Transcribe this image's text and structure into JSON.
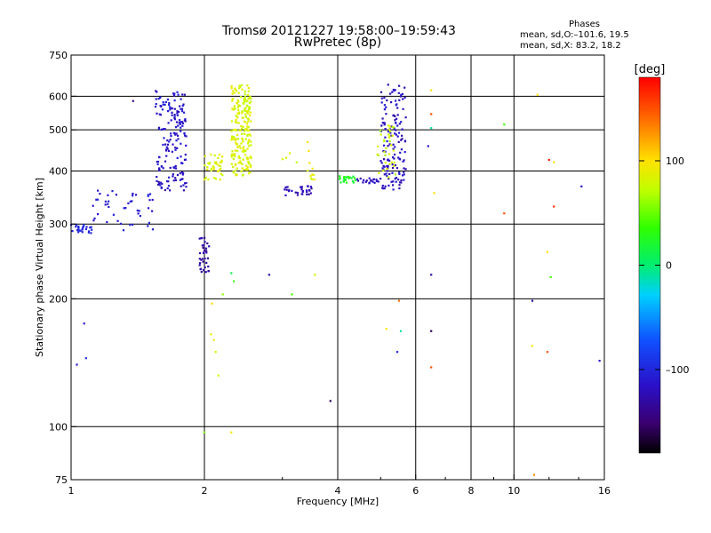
{
  "header": {
    "title_line1": "Tromsø 20121227 19:58:00–19:59:43",
    "title_line2": "RwPretec (8p)",
    "phases_title": "Phases",
    "phases_o": "mean, sd,O:–101.6, 19.5",
    "phases_x": "mean, sd,X:  83.2, 18.2"
  },
  "colorbar": {
    "unit_label": "[deg]",
    "tick_labels": [
      "100",
      "0",
      "–100"
    ],
    "tick_values": [
      100,
      0,
      -100
    ],
    "range": [
      -180,
      180
    ]
  },
  "chart_data": {
    "type": "scatter",
    "title": "Tromsø 20121227 19:58:00–19:59:43",
    "subtitle": "RwPretec (8p)",
    "xlabel": "Frequency [MHz]",
    "ylabel": "Stationary phase Virtual Height [km]",
    "xscale": "log",
    "yscale": "log",
    "xlim": [
      1,
      16
    ],
    "ylim": [
      75,
      750
    ],
    "grid": true,
    "x_ticks": [
      1,
      2,
      4,
      6,
      8,
      10,
      16
    ],
    "x_tick_labels": [
      "1",
      "2",
      "4",
      "6",
      "8",
      "10",
      "16"
    ],
    "y_ticks": [
      75,
      100,
      200,
      300,
      400,
      500,
      600,
      750
    ],
    "y_tick_labels": [
      "75",
      "100",
      "200",
      "300",
      "400",
      "500",
      "600",
      "750"
    ],
    "x_gridlines": [
      2,
      4,
      6,
      8,
      10
    ],
    "y_gridlines": [
      100,
      200,
      300,
      400,
      500,
      600
    ],
    "color_by": "phase_deg",
    "clusters": [
      {
        "name": "low O-trace",
        "f": [
          1.0,
          1.12
        ],
        "h": [
          285,
          300
        ],
        "phase": [
          -110,
          -95
        ],
        "n": 25
      },
      {
        "name": "rising O-trace",
        "f": [
          1.12,
          1.55
        ],
        "h": [
          290,
          360
        ],
        "phase": [
          -115,
          -100
        ],
        "n": 45
      },
      {
        "name": "F-layer O cusp",
        "f": [
          1.55,
          1.82
        ],
        "h": [
          360,
          620
        ],
        "phase": [
          -125,
          -100
        ],
        "n": 170
      },
      {
        "name": "spread near 2 MHz",
        "f": [
          1.95,
          2.05
        ],
        "h": [
          230,
          280
        ],
        "phase": [
          -140,
          -120
        ],
        "n": 35
      },
      {
        "name": "X-trace cluster low",
        "f": [
          2.0,
          2.2
        ],
        "h": [
          380,
          440
        ],
        "phase": [
          75,
          95
        ],
        "n": 40
      },
      {
        "name": "X-trace cluster",
        "f": [
          2.3,
          2.55
        ],
        "h": [
          390,
          640
        ],
        "phase": [
          70,
          95
        ],
        "n": 220
      },
      {
        "name": "O-trace mid",
        "f": [
          3.0,
          3.5
        ],
        "h": [
          350,
          370
        ],
        "phase": [
          -135,
          -115
        ],
        "n": 30
      },
      {
        "name": "mid X points",
        "f": [
          3.0,
          3.6
        ],
        "h": [
          380,
          470
        ],
        "phase": [
          70,
          100
        ],
        "n": 15
      },
      {
        "name": "green trace",
        "f": [
          4.0,
          4.4
        ],
        "h": [
          375,
          390
        ],
        "phase": [
          15,
          35
        ],
        "n": 25
      },
      {
        "name": "O-trace high",
        "f": [
          4.4,
          5.0
        ],
        "h": [
          372,
          385
        ],
        "phase": [
          -130,
          -110
        ],
        "n": 20
      },
      {
        "name": "F2 cusp O",
        "f": [
          5.0,
          5.7
        ],
        "h": [
          360,
          640
        ],
        "phase": [
          -130,
          -105
        ],
        "n": 140
      },
      {
        "name": "F2 cusp X",
        "f": [
          4.9,
          5.4
        ],
        "h": [
          380,
          520
        ],
        "phase": [
          60,
          90
        ],
        "n": 35
      }
    ],
    "isolated_points": [
      {
        "f": 1.38,
        "h": 585,
        "phase": -140
      },
      {
        "f": 1.03,
        "h": 140,
        "phase": -110
      },
      {
        "f": 1.07,
        "h": 175,
        "phase": -110
      },
      {
        "f": 1.08,
        "h": 145,
        "phase": -95
      },
      {
        "f": 2.08,
        "h": 195,
        "phase": 100
      },
      {
        "f": 2.07,
        "h": 165,
        "phase": 90
      },
      {
        "f": 2.1,
        "h": 160,
        "phase": 95
      },
      {
        "f": 2.12,
        "h": 150,
        "phase": 80
      },
      {
        "f": 2.15,
        "h": 132,
        "phase": 75
      },
      {
        "f": 2.0,
        "h": 97,
        "phase": 55
      },
      {
        "f": 2.3,
        "h": 97,
        "phase": 95
      },
      {
        "f": 2.3,
        "h": 230,
        "phase": 10
      },
      {
        "f": 2.33,
        "h": 220,
        "phase": 40
      },
      {
        "f": 2.2,
        "h": 205,
        "phase": 60
      },
      {
        "f": 2.8,
        "h": 228,
        "phase": -130
      },
      {
        "f": 3.15,
        "h": 205,
        "phase": 40
      },
      {
        "f": 3.55,
        "h": 228,
        "phase": 85
      },
      {
        "f": 3.85,
        "h": 115,
        "phase": -160
      },
      {
        "f": 5.15,
        "h": 170,
        "phase": 95
      },
      {
        "f": 5.45,
        "h": 150,
        "phase": -100
      },
      {
        "f": 5.55,
        "h": 168,
        "phase": -10
      },
      {
        "f": 5.5,
        "h": 198,
        "phase": 140
      },
      {
        "f": 6.5,
        "h": 620,
        "phase": 100
      },
      {
        "f": 6.5,
        "h": 545,
        "phase": 150
      },
      {
        "f": 6.5,
        "h": 505,
        "phase": -10
      },
      {
        "f": 6.4,
        "h": 458,
        "phase": -120
      },
      {
        "f": 6.6,
        "h": 355,
        "phase": 100
      },
      {
        "f": 6.5,
        "h": 228,
        "phase": -130
      },
      {
        "f": 6.5,
        "h": 168,
        "phase": -160
      },
      {
        "f": 6.5,
        "h": 138,
        "phase": 150
      },
      {
        "f": 9.5,
        "h": 515,
        "phase": 40
      },
      {
        "f": 9.5,
        "h": 318,
        "phase": 150
      },
      {
        "f": 11.3,
        "h": 605,
        "phase": 100
      },
      {
        "f": 12.0,
        "h": 425,
        "phase": 170
      },
      {
        "f": 12.3,
        "h": 420,
        "phase": 100
      },
      {
        "f": 12.3,
        "h": 330,
        "phase": 160
      },
      {
        "f": 11.9,
        "h": 258,
        "phase": 100
      },
      {
        "f": 12.1,
        "h": 225,
        "phase": 40
      },
      {
        "f": 11.0,
        "h": 198,
        "phase": -130
      },
      {
        "f": 11.0,
        "h": 155,
        "phase": 100
      },
      {
        "f": 11.9,
        "h": 150,
        "phase": 150
      },
      {
        "f": 11.1,
        "h": 77,
        "phase": 130
      },
      {
        "f": 14.2,
        "h": 368,
        "phase": -110
      },
      {
        "f": 15.6,
        "h": 143,
        "phase": -110
      }
    ]
  }
}
